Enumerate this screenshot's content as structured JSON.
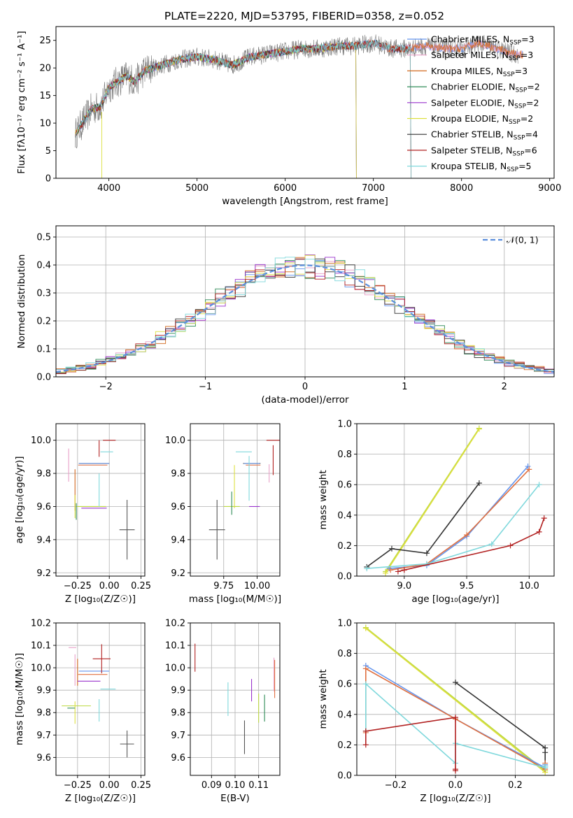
{
  "figure": {
    "title": "PLATE=2220, MJD=53795, FIBERID=0358, z=0.052",
    "palette": [
      "#6495ED",
      "#E8A0C8",
      "#D2691E",
      "#2E8B57",
      "#9932CC",
      "#DDE040",
      "#333333",
      "#B22222",
      "#7FD8DC",
      "#E07040",
      "#BCD840",
      "#555555"
    ]
  },
  "chart_data": [
    {
      "id": "spectrum",
      "type": "line",
      "xlabel": "wavelength [Angstrom, rest frame]",
      "ylabel": "Flux [fλ10⁻¹⁷ erg cm⁻² s⁻¹ A⁻¹]",
      "xlim": [
        3400,
        9050
      ],
      "ylim": [
        0,
        27.5
      ],
      "xticks": [
        4000,
        5000,
        6000,
        7000,
        8000,
        9000
      ],
      "yticks": [
        0,
        5,
        10,
        15,
        20,
        25
      ],
      "grid": false,
      "legend_position": "top-right",
      "continuum": {
        "x": [
          3620,
          3700,
          3800,
          3900,
          3950,
          4000,
          4100,
          4200,
          4300,
          4400,
          4600,
          4800,
          5000,
          5200,
          5400,
          5600,
          5800,
          6000,
          6200,
          6400,
          6600,
          6800,
          7000,
          7200,
          7400,
          7600,
          7800,
          8000,
          8200,
          8400,
          8600
        ],
        "y": [
          8,
          10,
          12.5,
          13,
          14.5,
          16.5,
          17.5,
          18.5,
          17.5,
          19.5,
          20.5,
          21.5,
          22,
          21.5,
          20.5,
          22,
          22.5,
          23,
          23.5,
          23.5,
          24,
          24,
          24.5,
          23.5,
          23.5,
          24,
          23.5,
          23.5,
          24.5,
          23.5,
          22.5
        ]
      },
      "series": [
        {
          "name": "Chabrier MILES, N",
          "sub": "SSP",
          "suffix": "=3",
          "x_end": 8700
        },
        {
          "name": "Salpeter MILES, N",
          "sub": "SSP",
          "suffix": "=3",
          "x_end": 8700
        },
        {
          "name": "Kroupa MILES, N",
          "sub": "SSP",
          "suffix": "=3",
          "x_end": 8700
        },
        {
          "name": "Chabrier ELODIE, N",
          "sub": "SSP",
          "suffix": "=2",
          "x_end": 6800
        },
        {
          "name": "Salpeter ELODIE, N",
          "sub": "SSP",
          "suffix": "=2",
          "x_end": 6800
        },
        {
          "name": "Kroupa ELODIE, N",
          "sub": "SSP",
          "suffix": "=2",
          "x_end": 6800
        },
        {
          "name": "Chabrier STELIB, N",
          "sub": "SSP",
          "suffix": "=4",
          "x_end": 7420
        },
        {
          "name": "Salpeter STELIB, N",
          "sub": "SSP",
          "suffix": "=6",
          "x_end": 7420
        },
        {
          "name": "Kroupa STELIB, N",
          "sub": "SSP",
          "suffix": "=5",
          "x_end": 7420
        }
      ]
    },
    {
      "id": "residuals",
      "type": "line",
      "xlabel": "(data-model)/error",
      "ylabel": "Normed distribution",
      "xlim": [
        -2.5,
        2.5
      ],
      "ylim": [
        0,
        0.54
      ],
      "xticks": [
        -2,
        -1,
        0,
        1,
        2
      ],
      "yticks": [
        0.0,
        0.1,
        0.2,
        0.3,
        0.4,
        0.5
      ],
      "grid": true,
      "legend_position": "top-right",
      "legend": {
        "label": "𝒩(0, 1)",
        "color": "#5B8EDC"
      },
      "histogram_bins": 50
    },
    {
      "id": "age-vs-Z",
      "type": "scatter",
      "xlabel": "Z [log₁₀(Z/Z☉)]",
      "ylabel": "age  [log₁₀(age/yr)]",
      "xlim": [
        -0.42,
        0.28
      ],
      "ylim": [
        9.18,
        10.1
      ],
      "xticks": [
        -0.25,
        0.0,
        0.25
      ],
      "yticks": [
        9.2,
        9.4,
        9.6,
        9.8,
        10.0
      ],
      "grid": true,
      "points": [
        {
          "x": -0.12,
          "y": 9.86,
          "xe": 0.24,
          "ye": 0.0,
          "c": 6
        },
        {
          "x": -0.12,
          "y": 9.86,
          "xe": 0.24,
          "ye": 0.0,
          "c": 0
        },
        {
          "x": -0.13,
          "y": 9.85,
          "xe": 0.23,
          "ye": 0.0,
          "c": 9
        },
        {
          "x": -0.32,
          "y": 9.85,
          "xe": 0.0,
          "ye": 0.2,
          "c": 1
        },
        {
          "x": -0.27,
          "y": 9.7,
          "xe": 0.0,
          "ye": 0.25,
          "c": 2
        },
        {
          "x": -0.14,
          "y": 9.6,
          "xe": 0.23,
          "ye": 0.0,
          "c": 10
        },
        {
          "x": -0.12,
          "y": 9.59,
          "xe": 0.2,
          "ye": 0.0,
          "c": 4
        },
        {
          "x": -0.27,
          "y": 9.6,
          "xe": 0.0,
          "ye": 0.14,
          "c": 5
        },
        {
          "x": -0.26,
          "y": 9.57,
          "xe": 0.0,
          "ye": 0.1,
          "c": 3
        },
        {
          "x": 0.0,
          "y": 10.0,
          "xe": 0.1,
          "ye": 0.0,
          "c": 7
        },
        {
          "x": -0.08,
          "y": 9.95,
          "xe": 0.0,
          "ye": 0.1,
          "c": 7
        },
        {
          "x": -0.02,
          "y": 9.93,
          "xe": 0.1,
          "ye": 0.0,
          "c": 8
        },
        {
          "x": -0.08,
          "y": 9.7,
          "xe": 0.0,
          "ye": 0.2,
          "c": 8
        },
        {
          "x": 0.14,
          "y": 9.46,
          "xe": 0.12,
          "ye": 0.36,
          "c": 11
        }
      ]
    },
    {
      "id": "age-vs-mass",
      "type": "scatter",
      "xlabel": "mass [log₁₀(M/M☉)]",
      "ylabel": "",
      "xlim": [
        9.5,
        10.17
      ],
      "ylim": [
        9.18,
        10.1
      ],
      "xticks": [
        9.75,
        10.0
      ],
      "yticks": [
        9.2,
        9.4,
        9.6,
        9.8,
        10.0
      ],
      "grid": true,
      "points": [
        {
          "x": 9.96,
          "y": 9.86,
          "xe": 0.13,
          "ye": 0.0,
          "c": 6
        },
        {
          "x": 9.96,
          "y": 9.86,
          "xe": 0.12,
          "ye": 0.0,
          "c": 0
        },
        {
          "x": 9.97,
          "y": 9.85,
          "xe": 0.11,
          "ye": 0.0,
          "c": 9
        },
        {
          "x": 10.09,
          "y": 9.8,
          "xe": 0.0,
          "ye": 0.11,
          "c": 1
        },
        {
          "x": 9.98,
          "y": 9.6,
          "xe": 0.08,
          "ye": 0.0,
          "c": 4
        },
        {
          "x": 9.83,
          "y": 9.72,
          "xe": 0.0,
          "ye": 0.26,
          "c": 5
        },
        {
          "x": 9.81,
          "y": 9.6,
          "xe": 0.12,
          "ye": 0.0,
          "c": 10
        },
        {
          "x": 9.81,
          "y": 9.62,
          "xe": 0.0,
          "ye": 0.14,
          "c": 3
        },
        {
          "x": 10.14,
          "y": 10.0,
          "xe": 0.14,
          "ye": 0.0,
          "c": 7
        },
        {
          "x": 10.12,
          "y": 9.88,
          "xe": 0.0,
          "ye": 0.18,
          "c": 7
        },
        {
          "x": 9.9,
          "y": 9.93,
          "xe": 0.12,
          "ye": 0.0,
          "c": 8
        },
        {
          "x": 9.94,
          "y": 9.77,
          "xe": 0.0,
          "ye": 0.27,
          "c": 8
        },
        {
          "x": 9.7,
          "y": 9.46,
          "xe": 0.12,
          "ye": 0.36,
          "c": 11
        }
      ]
    },
    {
      "id": "mass-weight-vs-age",
      "type": "line",
      "xlabel": "age  [log₁₀(age/yr)]",
      "ylabel": "mass weight",
      "xlim": [
        8.62,
        10.2
      ],
      "ylim": [
        0,
        1.0
      ],
      "xticks": [
        9.0,
        9.5,
        10.0
      ],
      "yticks": [
        0.0,
        0.2,
        0.4,
        0.6,
        0.8,
        1.0
      ],
      "grid": true,
      "series": [
        {
          "c": 10,
          "x": [
            8.85,
            9.6
          ],
          "y": [
            0.03,
            0.97
          ]
        },
        {
          "c": 5,
          "x": [
            8.85,
            9.6
          ],
          "y": [
            0.02,
            0.965
          ]
        },
        {
          "c": 6,
          "x": [
            8.7,
            8.9,
            9.18,
            9.6
          ],
          "y": [
            0.06,
            0.18,
            0.15,
            0.61
          ]
        },
        {
          "c": 0,
          "x": [
            8.88,
            9.18,
            9.5,
            9.99
          ],
          "y": [
            0.05,
            0.07,
            0.26,
            0.72
          ]
        },
        {
          "c": 9,
          "x": [
            8.89,
            9.18,
            9.5,
            10.0
          ],
          "y": [
            0.04,
            0.08,
            0.27,
            0.7
          ]
        },
        {
          "c": 8,
          "x": [
            8.7,
            9.18,
            9.7,
            10.08
          ],
          "y": [
            0.05,
            0.08,
            0.21,
            0.6
          ]
        },
        {
          "c": 7,
          "x": [
            8.95,
            9.0,
            9.85,
            10.08,
            10.12
          ],
          "y": [
            0.03,
            0.04,
            0.2,
            0.29,
            0.38
          ]
        }
      ]
    },
    {
      "id": "mass-vs-Z",
      "type": "scatter",
      "xlabel": "Z [log₁₀(Z/Z☉)]",
      "ylabel": "mass [log₁₀(M/M☉)]",
      "xlim": [
        -0.42,
        0.28
      ],
      "ylim": [
        9.52,
        10.2
      ],
      "xticks": [
        -0.25,
        0.0,
        0.25
      ],
      "yticks": [
        9.6,
        9.7,
        9.8,
        9.9,
        10.0,
        10.1,
        10.2
      ],
      "grid": true,
      "points": [
        {
          "x": -0.12,
          "y": 9.985,
          "xe": 0.24,
          "ye": 0.0,
          "c": 0
        },
        {
          "x": -0.27,
          "y": 9.99,
          "xe": 0.0,
          "ye": 0.14,
          "c": 1
        },
        {
          "x": -0.29,
          "y": 10.09,
          "xe": 0.06,
          "ye": 0.0,
          "c": 1
        },
        {
          "x": -0.13,
          "y": 9.97,
          "xe": 0.23,
          "ye": 0.0,
          "c": 9
        },
        {
          "x": -0.25,
          "y": 9.98,
          "xe": 0.0,
          "ye": 0.12,
          "c": 2
        },
        {
          "x": -0.16,
          "y": 9.94,
          "xe": 0.18,
          "ye": 0.0,
          "c": 4
        },
        {
          "x": -0.26,
          "y": 9.83,
          "xe": 0.23,
          "ye": 0.0,
          "c": 10
        },
        {
          "x": -0.27,
          "y": 9.8,
          "xe": 0.0,
          "ye": 0.1,
          "c": 5
        },
        {
          "x": -0.3,
          "y": 9.82,
          "xe": 0.06,
          "ye": 0.0,
          "c": 3
        },
        {
          "x": -0.06,
          "y": 10.04,
          "xe": 0.14,
          "ye": 0.13,
          "c": 7
        },
        {
          "x": -0.01,
          "y": 9.905,
          "xe": 0.12,
          "ye": 0.0,
          "c": 8
        },
        {
          "x": -0.08,
          "y": 9.81,
          "xe": 0.0,
          "ye": 0.1,
          "c": 8
        },
        {
          "x": 0.14,
          "y": 9.66,
          "xe": 0.11,
          "ye": 0.12,
          "c": 11
        }
      ]
    },
    {
      "id": "mass-vs-EBV",
      "type": "scatter",
      "xlabel": "E(B-V)",
      "ylabel": "",
      "xlim": [
        0.081,
        0.119
      ],
      "ylim": [
        9.52,
        10.2
      ],
      "xticks": [
        0.09,
        0.1,
        0.11
      ],
      "yticks": [
        9.6,
        9.7,
        9.8,
        9.9,
        10.0,
        10.1,
        10.2
      ],
      "grid": true,
      "points": [
        {
          "x": 0.083,
          "y": 10.045,
          "xe": 0.0,
          "ye": 0.125,
          "c": 7
        },
        {
          "x": 0.097,
          "y": 9.86,
          "xe": 0.0,
          "ye": 0.15,
          "c": 8
        },
        {
          "x": 0.104,
          "y": 9.69,
          "xe": 0.0,
          "ye": 0.15,
          "c": 11
        },
        {
          "x": 0.107,
          "y": 9.9,
          "xe": 0.0,
          "ye": 0.1,
          "c": 4
        },
        {
          "x": 0.11,
          "y": 9.82,
          "xe": 0.0,
          "ye": 0.13,
          "c": 10
        },
        {
          "x": 0.1125,
          "y": 9.82,
          "xe": 0.0,
          "ye": 0.12,
          "c": 3
        },
        {
          "x": 0.1165,
          "y": 9.97,
          "xe": 0.0,
          "ye": 0.15,
          "c": 1
        },
        {
          "x": 0.1168,
          "y": 9.95,
          "xe": 0.0,
          "ye": 0.17,
          "c": 9
        }
      ]
    },
    {
      "id": "mass-weight-vs-Z",
      "type": "line",
      "xlabel": "Z [log₁₀(Z/Z☉)]",
      "ylabel": "mass weight",
      "xlim": [
        -0.33,
        0.33
      ],
      "ylim": [
        0,
        1.0
      ],
      "xticks": [
        -0.2,
        0.0,
        0.2
      ],
      "yticks": [
        0.0,
        0.2,
        0.4,
        0.6,
        0.8,
        1.0
      ],
      "grid": true,
      "series": [
        {
          "c": 10,
          "x": [
            -0.3,
            0.3
          ],
          "y": [
            0.97,
            0.03
          ]
        },
        {
          "c": 5,
          "x": [
            -0.3,
            0.3
          ],
          "y": [
            0.965,
            0.02
          ]
        },
        {
          "c": 6,
          "x": [
            0.0,
            0.3,
            0.3,
            0.3
          ],
          "y": [
            0.61,
            0.18,
            0.15,
            0.06
          ]
        },
        {
          "c": 0,
          "x": [
            -0.3,
            0.0,
            0.3,
            0.3
          ],
          "y": [
            0.72,
            0.37,
            0.05,
            0.07
          ]
        },
        {
          "c": 9,
          "x": [
            -0.3,
            -0.3,
            0.0,
            0.3,
            0.3
          ],
          "y": [
            0.28,
            0.7,
            0.37,
            0.04,
            0.08
          ]
        },
        {
          "c": 8,
          "x": [
            -0.3,
            -0.3,
            0.0,
            0.0,
            0.3,
            0.3
          ],
          "y": [
            0.29,
            0.6,
            0.08,
            0.21,
            0.05,
            0.06
          ]
        },
        {
          "c": 7,
          "x": [
            -0.3,
            -0.3,
            0.0,
            0.0,
            0.0
          ],
          "y": [
            0.2,
            0.29,
            0.38,
            0.04,
            0.03
          ]
        }
      ]
    }
  ]
}
